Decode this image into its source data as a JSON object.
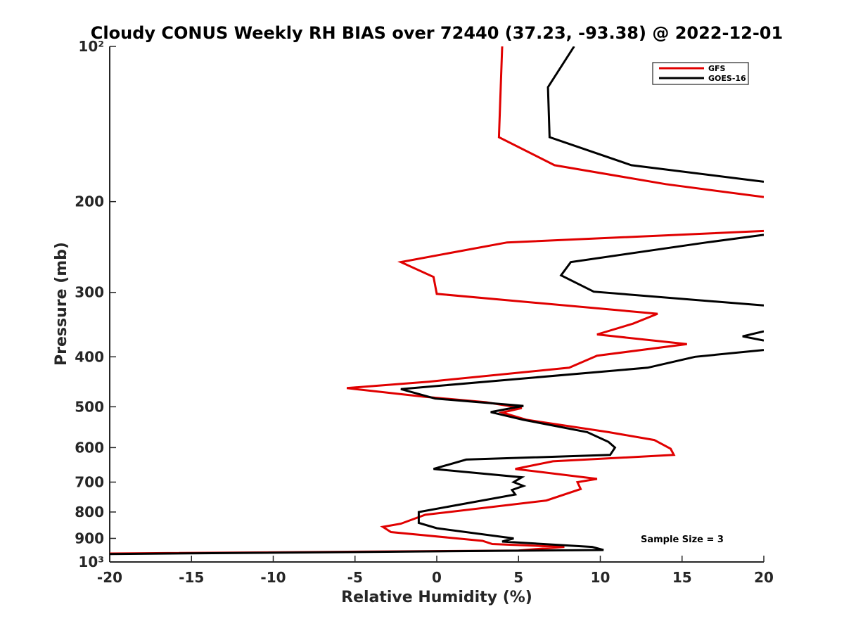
{
  "chart_data": {
    "type": "line",
    "title": "Cloudy CONUS Weekly RH BIAS over 72440 (37.23, -93.38) @ 2022-12-01",
    "xlabel": "Relative Humidity (%)",
    "ylabel": "Pressure (mb)",
    "xlim": [
      -20,
      20
    ],
    "ylim": [
      100,
      1000
    ],
    "yscale": "log",
    "y_reversed": true,
    "grid": false,
    "legend_position": "top-right",
    "x_ticks": [
      -20,
      -15,
      -10,
      -5,
      0,
      5,
      10,
      15,
      20
    ],
    "x_tick_labels": [
      "-20",
      "-15",
      "-10",
      "-5",
      "0",
      "5",
      "10",
      "15",
      "20"
    ],
    "y_ticks": [
      100,
      200,
      300,
      400,
      500,
      600,
      700,
      800,
      900,
      1000
    ],
    "y_tick_labels": [
      "10²",
      "200",
      "300",
      "400",
      "500",
      "600",
      "700",
      "800",
      "900",
      "10³"
    ],
    "annotation": "Sample Size = 3",
    "series": [
      {
        "name": "GFS",
        "color": "#e00000",
        "points": [
          [
            4.0,
            100
          ],
          [
            3.8,
            150
          ],
          [
            7.2,
            170
          ],
          [
            14.0,
            185
          ],
          [
            20.0,
            196
          ],
          [
            null,
            null
          ],
          [
            20.0,
            228
          ],
          [
            4.3,
            240
          ],
          [
            -2.2,
            262
          ],
          [
            -0.2,
            280
          ],
          [
            0.0,
            302
          ],
          [
            13.5,
            330
          ],
          [
            12.0,
            345
          ],
          [
            9.8,
            362
          ],
          [
            15.3,
            378
          ],
          [
            9.8,
            398
          ],
          [
            8.1,
            420
          ],
          [
            -0.5,
            447
          ],
          [
            -5.5,
            460
          ],
          [
            -0.8,
            478
          ],
          [
            3.0,
            490
          ],
          [
            5.2,
            503
          ],
          [
            4.0,
            513
          ],
          [
            5.5,
            530
          ],
          [
            10.5,
            560
          ],
          [
            13.3,
            580
          ],
          [
            14.3,
            603
          ],
          [
            14.5,
            620
          ],
          [
            7.1,
            638
          ],
          [
            4.8,
            660
          ],
          [
            9.8,
            690
          ],
          [
            8.6,
            700
          ],
          [
            8.8,
            722
          ],
          [
            6.7,
            760
          ],
          [
            -0.7,
            810
          ],
          [
            -2.2,
            843
          ],
          [
            -3.3,
            855
          ],
          [
            -2.8,
            875
          ],
          [
            2.8,
            910
          ],
          [
            3.4,
            923
          ],
          [
            7.8,
            935
          ],
          [
            5.0,
            950
          ],
          [
            -20.0,
            963
          ]
        ]
      },
      {
        "name": "GOES-16",
        "color": "#000000",
        "points": [
          [
            8.4,
            100
          ],
          [
            6.8,
            120
          ],
          [
            6.9,
            150
          ],
          [
            11.9,
            170
          ],
          [
            20.0,
            183
          ],
          [
            null,
            null
          ],
          [
            20.0,
            232
          ],
          [
            16.5,
            240
          ],
          [
            8.2,
            262
          ],
          [
            7.6,
            278
          ],
          [
            9.6,
            299
          ],
          [
            20.0,
            318
          ],
          [
            null,
            null
          ],
          [
            20.0,
            357
          ],
          [
            18.7,
            365
          ],
          [
            20.0,
            372
          ],
          [
            null,
            null
          ],
          [
            20.0,
            388
          ],
          [
            15.8,
            400
          ],
          [
            12.9,
            420
          ],
          [
            -2.2,
            462
          ],
          [
            -0.1,
            482
          ],
          [
            5.3,
            498
          ],
          [
            3.3,
            512
          ],
          [
            5.3,
            530
          ],
          [
            9.2,
            560
          ],
          [
            10.5,
            585
          ],
          [
            10.9,
            600
          ],
          [
            10.6,
            620
          ],
          [
            1.8,
            633
          ],
          [
            -0.2,
            660
          ],
          [
            5.2,
            685
          ],
          [
            4.7,
            700
          ],
          [
            5.3,
            712
          ],
          [
            4.6,
            725
          ],
          [
            4.8,
            740
          ],
          [
            -1.1,
            800
          ],
          [
            -1.1,
            840
          ],
          [
            0.0,
            860
          ],
          [
            4.7,
            900
          ],
          [
            4.0,
            913
          ],
          [
            9.5,
            935
          ],
          [
            10.2,
            948
          ],
          [
            -20.0,
            965
          ]
        ]
      }
    ]
  }
}
